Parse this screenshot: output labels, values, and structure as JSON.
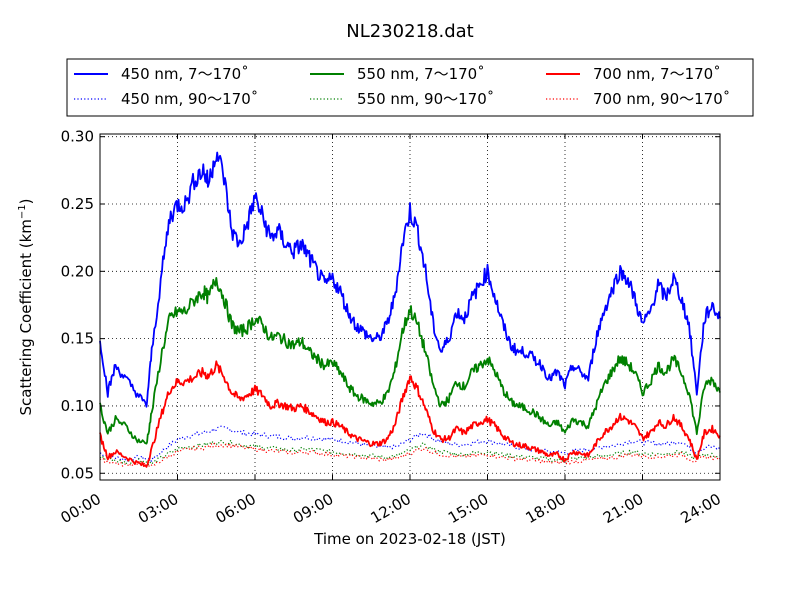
{
  "chart_data": {
    "type": "line",
    "title": "NL230218.dat",
    "xlabel": "Time on 2023-02-18 (JST)",
    "ylabel": "Scattering Coefficient (km",
    "ylabel_sup": "−1",
    "ylabel_end": ")",
    "xlim": [
      0,
      24
    ],
    "ylim": [
      0.045,
      0.302
    ],
    "x_ticks": [
      0,
      3,
      6,
      9,
      12,
      15,
      18,
      21,
      24
    ],
    "x_tick_labels": [
      "00:00",
      "03:00",
      "06:00",
      "09:00",
      "12:00",
      "15:00",
      "18:00",
      "21:00",
      "24:00"
    ],
    "y_ticks": [
      0.05,
      0.1,
      0.15,
      0.2,
      0.25,
      0.3
    ],
    "y_tick_labels": [
      "0.05",
      "0.10",
      "0.15",
      "0.20",
      "0.25",
      "0.30"
    ],
    "grid": true,
    "legend_position": "top",
    "series": [
      {
        "name": "450 nm, 7～170˚",
        "color": "#0000ff",
        "style": "solid",
        "x": [
          0,
          0.3,
          0.6,
          1.0,
          1.4,
          1.8,
          2.0,
          2.4,
          2.7,
          3.0,
          3.3,
          3.7,
          4.0,
          4.2,
          4.5,
          4.8,
          5.1,
          5.4,
          5.7,
          6.0,
          6.3,
          6.6,
          6.9,
          7.2,
          7.5,
          7.8,
          8.1,
          8.4,
          8.7,
          9.0,
          9.3,
          9.6,
          9.9,
          10.2,
          10.5,
          10.8,
          11.1,
          11.4,
          11.7,
          12.0,
          12.3,
          12.6,
          12.9,
          13.2,
          13.5,
          13.8,
          14.1,
          14.4,
          14.7,
          15.0,
          15.3,
          15.6,
          15.9,
          16.2,
          16.5,
          16.8,
          17.1,
          17.4,
          17.7,
          18.0,
          18.3,
          18.6,
          18.9,
          19.2,
          19.5,
          19.8,
          20.1,
          20.4,
          20.7,
          21.0,
          21.3,
          21.6,
          21.9,
          22.2,
          22.5,
          22.8,
          23.1,
          23.4,
          23.7,
          24.0
        ],
        "y": [
          0.15,
          0.11,
          0.13,
          0.12,
          0.11,
          0.1,
          0.14,
          0.2,
          0.24,
          0.25,
          0.25,
          0.27,
          0.275,
          0.265,
          0.29,
          0.27,
          0.23,
          0.22,
          0.235,
          0.255,
          0.24,
          0.225,
          0.23,
          0.22,
          0.215,
          0.22,
          0.21,
          0.2,
          0.19,
          0.195,
          0.185,
          0.17,
          0.16,
          0.155,
          0.15,
          0.15,
          0.16,
          0.18,
          0.22,
          0.245,
          0.23,
          0.2,
          0.16,
          0.14,
          0.15,
          0.17,
          0.165,
          0.18,
          0.19,
          0.2,
          0.18,
          0.16,
          0.145,
          0.14,
          0.14,
          0.135,
          0.13,
          0.12,
          0.125,
          0.115,
          0.13,
          0.125,
          0.12,
          0.15,
          0.17,
          0.185,
          0.2,
          0.195,
          0.18,
          0.16,
          0.17,
          0.19,
          0.18,
          0.195,
          0.18,
          0.16,
          0.11,
          0.165,
          0.175,
          0.165
        ]
      },
      {
        "name": "450 nm, 90～170˚",
        "color": "#0000ff",
        "style": "dotted",
        "x": [
          0,
          0.5,
          1.0,
          1.5,
          2.0,
          2.5,
          3.0,
          3.5,
          4.0,
          4.5,
          5.0,
          5.5,
          6.0,
          6.5,
          7.0,
          7.5,
          8.0,
          8.5,
          9.0,
          9.5,
          10.0,
          10.5,
          11.0,
          11.5,
          12.0,
          12.5,
          13.0,
          13.5,
          14.0,
          14.5,
          15.0,
          15.5,
          16.0,
          16.5,
          17.0,
          17.5,
          18.0,
          18.5,
          19.0,
          19.5,
          20.0,
          20.5,
          21.0,
          21.5,
          22.0,
          22.5,
          23.0,
          23.5,
          24.0
        ],
        "y": [
          0.065,
          0.062,
          0.06,
          0.062,
          0.06,
          0.068,
          0.075,
          0.078,
          0.08,
          0.083,
          0.083,
          0.08,
          0.079,
          0.078,
          0.077,
          0.076,
          0.077,
          0.076,
          0.075,
          0.074,
          0.072,
          0.07,
          0.069,
          0.07,
          0.075,
          0.08,
          0.075,
          0.072,
          0.071,
          0.073,
          0.074,
          0.072,
          0.07,
          0.068,
          0.067,
          0.066,
          0.065,
          0.067,
          0.068,
          0.07,
          0.071,
          0.074,
          0.073,
          0.072,
          0.072,
          0.074,
          0.066,
          0.07,
          0.068
        ]
      },
      {
        "name": "550 nm, 7～170˚",
        "color": "#008000",
        "style": "solid",
        "x": [
          0,
          0.3,
          0.6,
          1.0,
          1.4,
          1.8,
          2.0,
          2.4,
          2.7,
          3.0,
          3.3,
          3.7,
          4.0,
          4.2,
          4.5,
          4.8,
          5.1,
          5.4,
          5.7,
          6.0,
          6.3,
          6.6,
          6.9,
          7.2,
          7.5,
          7.8,
          8.1,
          8.4,
          8.7,
          9.0,
          9.3,
          9.6,
          9.9,
          10.2,
          10.5,
          10.8,
          11.1,
          11.4,
          11.7,
          12.0,
          12.3,
          12.6,
          12.9,
          13.2,
          13.5,
          13.8,
          14.1,
          14.4,
          14.7,
          15.0,
          15.3,
          15.6,
          15.9,
          16.2,
          16.5,
          16.8,
          17.1,
          17.4,
          17.7,
          18.0,
          18.3,
          18.6,
          18.9,
          19.2,
          19.5,
          19.8,
          20.1,
          20.4,
          20.7,
          21.0,
          21.3,
          21.6,
          21.9,
          22.2,
          22.5,
          22.8,
          23.1,
          23.4,
          23.7,
          24.0
        ],
        "y": [
          0.1,
          0.08,
          0.09,
          0.085,
          0.075,
          0.072,
          0.095,
          0.14,
          0.165,
          0.17,
          0.17,
          0.18,
          0.185,
          0.18,
          0.195,
          0.18,
          0.16,
          0.155,
          0.158,
          0.165,
          0.16,
          0.15,
          0.152,
          0.148,
          0.145,
          0.148,
          0.14,
          0.135,
          0.13,
          0.132,
          0.125,
          0.115,
          0.108,
          0.105,
          0.102,
          0.102,
          0.108,
          0.125,
          0.155,
          0.172,
          0.16,
          0.14,
          0.115,
          0.1,
          0.105,
          0.118,
          0.114,
          0.125,
          0.13,
          0.135,
          0.125,
          0.112,
          0.103,
          0.1,
          0.098,
          0.095,
          0.09,
          0.085,
          0.088,
          0.08,
          0.09,
          0.088,
          0.085,
          0.1,
          0.115,
          0.125,
          0.135,
          0.132,
          0.125,
          0.11,
          0.118,
          0.13,
          0.125,
          0.135,
          0.125,
          0.11,
          0.08,
          0.115,
          0.12,
          0.11
        ]
      },
      {
        "name": "550 nm, 90～170˚",
        "color": "#008000",
        "style": "dotted",
        "x": [
          0,
          0.5,
          1.0,
          1.5,
          2.0,
          2.5,
          3.0,
          3.5,
          4.0,
          4.5,
          5.0,
          5.5,
          6.0,
          6.5,
          7.0,
          7.5,
          8.0,
          8.5,
          9.0,
          9.5,
          10.0,
          10.5,
          11.0,
          11.5,
          12.0,
          12.5,
          13.0,
          13.5,
          14.0,
          14.5,
          15.0,
          15.5,
          16.0,
          16.5,
          17.0,
          17.5,
          18.0,
          18.5,
          19.0,
          19.5,
          20.0,
          20.5,
          21.0,
          21.5,
          22.0,
          22.5,
          23.0,
          23.5,
          24.0
        ],
        "y": [
          0.062,
          0.06,
          0.058,
          0.06,
          0.057,
          0.063,
          0.068,
          0.07,
          0.071,
          0.073,
          0.073,
          0.071,
          0.07,
          0.069,
          0.068,
          0.067,
          0.068,
          0.067,
          0.066,
          0.065,
          0.064,
          0.063,
          0.062,
          0.063,
          0.067,
          0.071,
          0.067,
          0.065,
          0.064,
          0.065,
          0.066,
          0.064,
          0.063,
          0.062,
          0.061,
          0.06,
          0.06,
          0.061,
          0.062,
          0.063,
          0.064,
          0.066,
          0.065,
          0.064,
          0.065,
          0.066,
          0.061,
          0.064,
          0.063
        ]
      },
      {
        "name": "700 nm, 7～170˚",
        "color": "#ff0000",
        "style": "solid",
        "x": [
          0,
          0.3,
          0.6,
          1.0,
          1.4,
          1.8,
          2.0,
          2.4,
          2.7,
          3.0,
          3.3,
          3.7,
          4.0,
          4.2,
          4.5,
          4.8,
          5.1,
          5.4,
          5.7,
          6.0,
          6.3,
          6.6,
          6.9,
          7.2,
          7.5,
          7.8,
          8.1,
          8.4,
          8.7,
          9.0,
          9.3,
          9.6,
          9.9,
          10.2,
          10.5,
          10.8,
          11.1,
          11.4,
          11.7,
          12.0,
          12.3,
          12.6,
          12.9,
          13.2,
          13.5,
          13.8,
          14.1,
          14.4,
          14.7,
          15.0,
          15.3,
          15.6,
          15.9,
          16.2,
          16.5,
          16.8,
          17.1,
          17.4,
          17.7,
          18.0,
          18.3,
          18.6,
          18.9,
          19.2,
          19.5,
          19.8,
          20.1,
          20.4,
          20.7,
          21.0,
          21.3,
          21.6,
          21.9,
          22.2,
          22.5,
          22.8,
          23.1,
          23.4,
          23.7,
          24.0
        ],
        "y": [
          0.078,
          0.062,
          0.066,
          0.062,
          0.058,
          0.055,
          0.068,
          0.095,
          0.112,
          0.118,
          0.118,
          0.122,
          0.125,
          0.122,
          0.13,
          0.122,
          0.11,
          0.105,
          0.108,
          0.112,
          0.108,
          0.1,
          0.102,
          0.1,
          0.098,
          0.1,
          0.096,
          0.092,
          0.088,
          0.088,
          0.085,
          0.08,
          0.076,
          0.074,
          0.072,
          0.072,
          0.075,
          0.085,
          0.105,
          0.122,
          0.112,
          0.098,
          0.082,
          0.075,
          0.076,
          0.083,
          0.08,
          0.085,
          0.088,
          0.09,
          0.085,
          0.078,
          0.073,
          0.071,
          0.07,
          0.068,
          0.066,
          0.063,
          0.064,
          0.06,
          0.066,
          0.065,
          0.063,
          0.072,
          0.08,
          0.085,
          0.092,
          0.09,
          0.085,
          0.076,
          0.08,
          0.088,
          0.085,
          0.092,
          0.085,
          0.076,
          0.06,
          0.08,
          0.083,
          0.078
        ]
      },
      {
        "name": "700 nm, 90～170˚",
        "color": "#ff0000",
        "style": "dotted",
        "x": [
          0,
          0.5,
          1.0,
          1.5,
          2.0,
          2.5,
          3.0,
          3.5,
          4.0,
          4.5,
          5.0,
          5.5,
          6.0,
          6.5,
          7.0,
          7.5,
          8.0,
          8.5,
          9.0,
          9.5,
          10.0,
          10.5,
          11.0,
          11.5,
          12.0,
          12.5,
          13.0,
          13.5,
          14.0,
          14.5,
          15.0,
          15.5,
          16.0,
          16.5,
          17.0,
          17.5,
          18.0,
          18.5,
          19.0,
          19.5,
          20.0,
          20.5,
          21.0,
          21.5,
          22.0,
          22.5,
          23.0,
          23.5,
          24.0
        ],
        "y": [
          0.06,
          0.058,
          0.056,
          0.058,
          0.055,
          0.061,
          0.066,
          0.068,
          0.069,
          0.071,
          0.071,
          0.069,
          0.068,
          0.067,
          0.066,
          0.065,
          0.066,
          0.065,
          0.064,
          0.063,
          0.062,
          0.061,
          0.06,
          0.061,
          0.065,
          0.069,
          0.065,
          0.063,
          0.062,
          0.063,
          0.064,
          0.062,
          0.061,
          0.06,
          0.059,
          0.058,
          0.058,
          0.059,
          0.06,
          0.061,
          0.062,
          0.064,
          0.063,
          0.062,
          0.063,
          0.064,
          0.059,
          0.062,
          0.061
        ]
      }
    ]
  }
}
